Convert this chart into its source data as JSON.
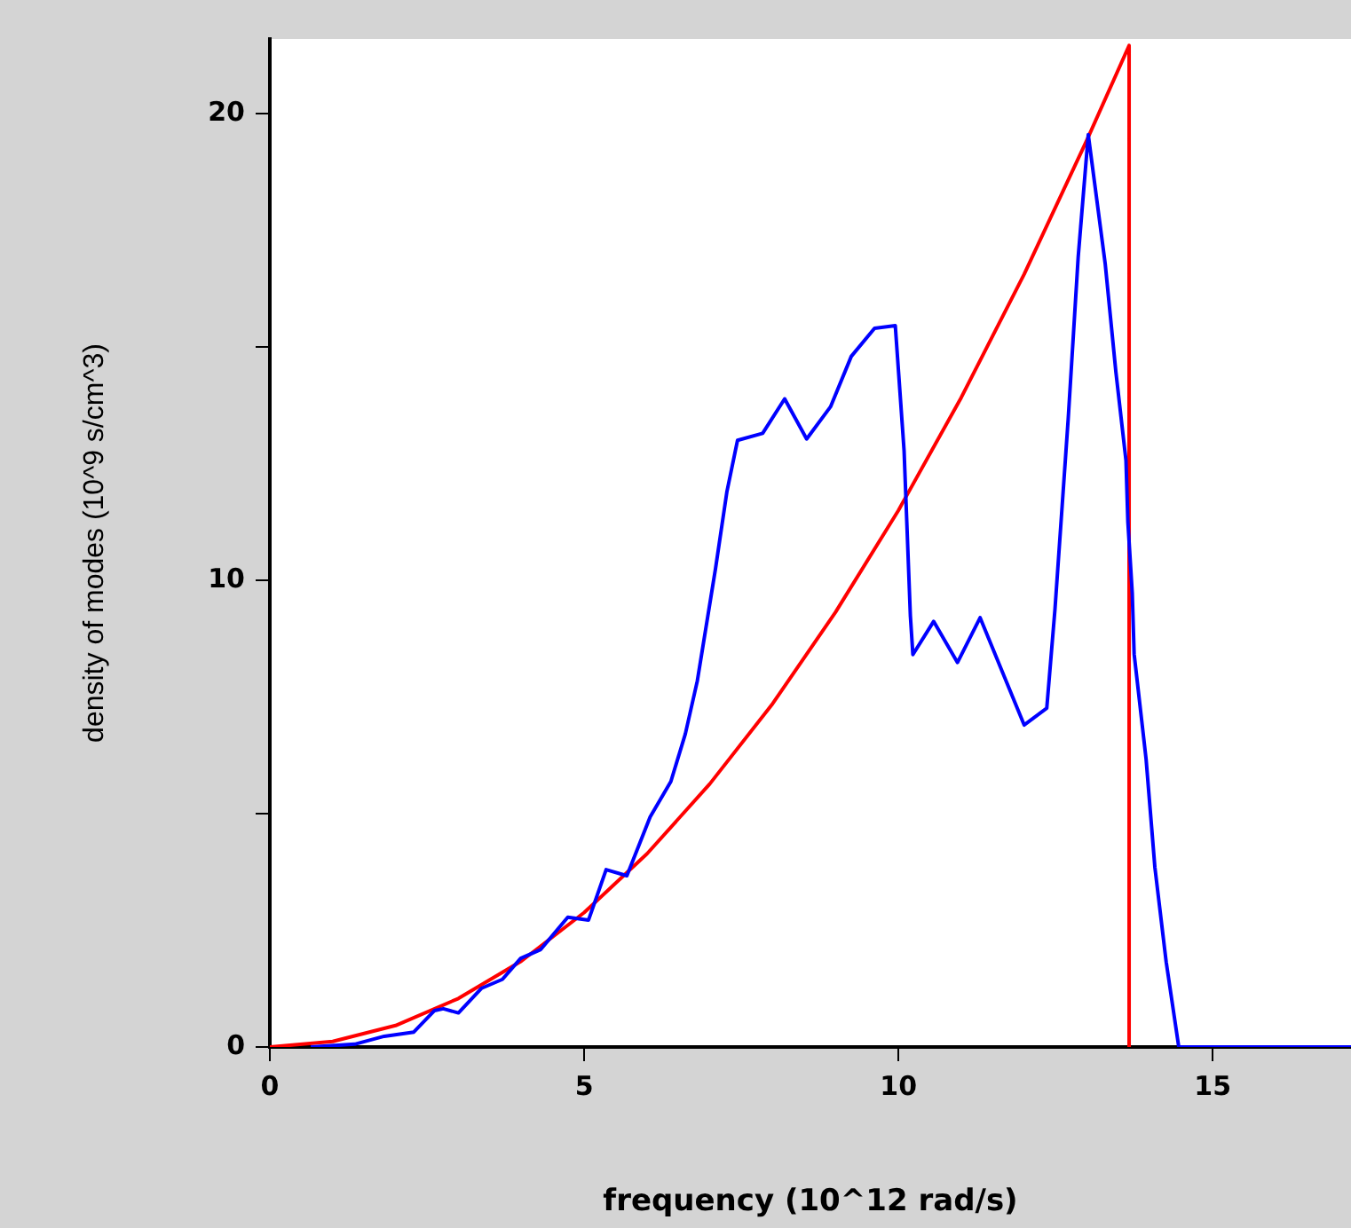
{
  "chart_data": {
    "type": "line",
    "xlabel": "frequency (10^12 rad/s)",
    "ylabel": "density of modes (10^9 s/cm^3)",
    "xlim": [
      0,
      17.2
    ],
    "ylim": [
      0,
      21.6
    ],
    "xticks": [
      0,
      5,
      10,
      15
    ],
    "yticks": [
      0,
      {
        "value": 5,
        "label": null
      },
      10,
      {
        "value": 15,
        "label": null
      },
      20
    ],
    "grid": false,
    "legend": false,
    "marker": "none",
    "line_style": "solid",
    "series": [
      {
        "color": "#0000ff",
        "x": [
          0.65,
          1.35,
          1.82,
          2.29,
          2.62,
          2.76,
          3.0,
          3.37,
          3.7,
          3.99,
          4.31,
          4.74,
          5.07,
          5.35,
          5.68,
          6.05,
          6.38,
          6.61,
          6.8,
          7.09,
          7.27,
          7.44,
          7.84,
          8.19,
          8.54,
          8.92,
          9.25,
          9.62,
          9.95,
          10.09,
          10.19,
          10.23,
          10.56,
          10.94,
          11.3,
          12.0,
          12.36,
          12.49,
          12.7,
          12.86,
          13.02,
          13.29,
          13.46,
          13.62,
          13.65,
          13.72,
          13.75,
          13.94,
          14.08,
          14.26,
          14.46,
          17.2
        ],
        "values": [
          0,
          0.06,
          0.23,
          0.32,
          0.78,
          0.82,
          0.73,
          1.26,
          1.45,
          1.9,
          2.09,
          2.78,
          2.72,
          3.8,
          3.67,
          4.93,
          5.69,
          6.71,
          7.84,
          10.25,
          11.89,
          13.0,
          13.15,
          13.89,
          13.03,
          13.72,
          14.8,
          15.4,
          15.46,
          12.78,
          9.24,
          8.41,
          9.12,
          8.24,
          9.2,
          6.9,
          7.26,
          9.37,
          13.44,
          16.93,
          19.55,
          16.78,
          14.46,
          12.57,
          11.26,
          9.73,
          8.42,
          6.17,
          3.85,
          1.82,
          0,
          0
        ]
      },
      {
        "color": "#ff0000",
        "x": [
          0,
          1,
          2,
          3,
          4,
          5,
          6,
          7,
          8,
          9,
          10,
          11,
          12,
          13,
          13.67,
          13.67
        ],
        "values": [
          0,
          0.12,
          0.46,
          1.04,
          1.84,
          2.88,
          4.14,
          5.64,
          7.36,
          9.32,
          11.5,
          13.92,
          16.56,
          19.44,
          21.46,
          0
        ]
      }
    ]
  }
}
